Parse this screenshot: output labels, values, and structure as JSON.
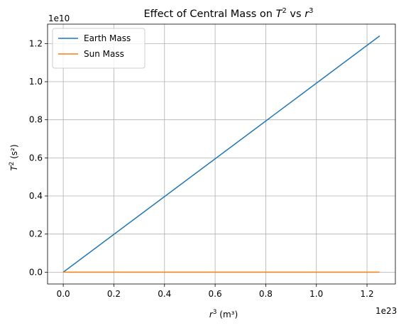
{
  "chart_data": {
    "type": "line",
    "title": "Effect of Central Mass on T² vs r³",
    "title_parts": {
      "pre": "Effect of Central Mass on ",
      "t": "T",
      "t_exp": "2",
      "mid": " vs ",
      "r": "r",
      "r_exp": "3"
    },
    "xlabel_parts": {
      "r": "r",
      "exp": "3",
      "unit": " (m³)"
    },
    "ylabel_parts": {
      "t": "T",
      "exp": "2",
      "unit": " (s²)"
    },
    "x_offset_label": "1e23",
    "y_offset_label": "1e10",
    "xlim": [
      -0.062,
      1.312
    ],
    "ylim": [
      -0.062,
      1.302
    ],
    "x_ticks": [
      0.0,
      0.2,
      0.4,
      0.6,
      0.8,
      1.0,
      1.2
    ],
    "x_tick_labels": [
      "0.0",
      "0.2",
      "0.4",
      "0.6",
      "0.8",
      "1.0",
      "1.2"
    ],
    "y_ticks": [
      0.0,
      0.2,
      0.4,
      0.6,
      0.8,
      1.0,
      1.2
    ],
    "y_tick_labels": [
      "0.0",
      "0.2",
      "0.4",
      "0.6",
      "0.8",
      "1.0",
      "1.2"
    ],
    "grid": true,
    "legend_position": "top-left",
    "series": [
      {
        "name": "Earth Mass",
        "color": "#1f77b4",
        "x": [
          0.0,
          1.25
        ],
        "y": [
          0.0,
          1.24
        ]
      },
      {
        "name": "Sun Mass",
        "color": "#ff7f0e",
        "x": [
          0.0,
          1.25
        ],
        "y": [
          0.0,
          3.7e-06
        ]
      }
    ]
  }
}
